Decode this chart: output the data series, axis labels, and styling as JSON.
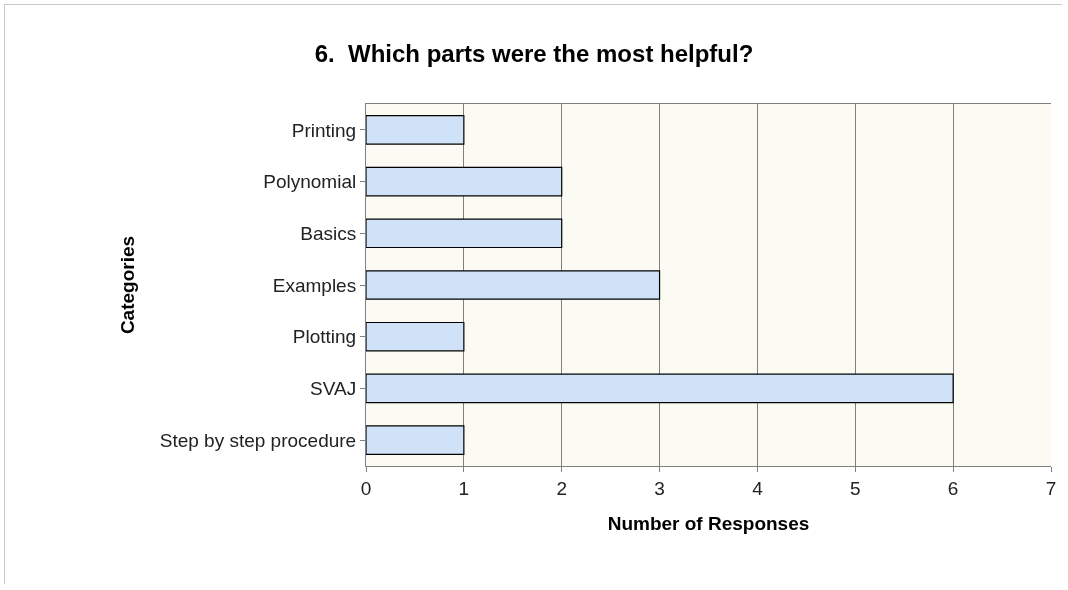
{
  "chart_data": {
    "type": "bar",
    "orientation": "horizontal",
    "title": "6.  Which parts were the most helpful?",
    "xlabel": "Number of Responses",
    "ylabel": "Categories",
    "categories": [
      "Printing",
      "Polynomial",
      "Basics",
      "Examples",
      "Plotting",
      "SVAJ",
      "Step by step procedure"
    ],
    "values": [
      1,
      2,
      2,
      3,
      1,
      6,
      1
    ],
    "color": "#cfe2f7",
    "xlim": [
      0,
      7
    ],
    "xticks": [
      0,
      1,
      2,
      3,
      4,
      5,
      6,
      7
    ],
    "grid": "x"
  }
}
